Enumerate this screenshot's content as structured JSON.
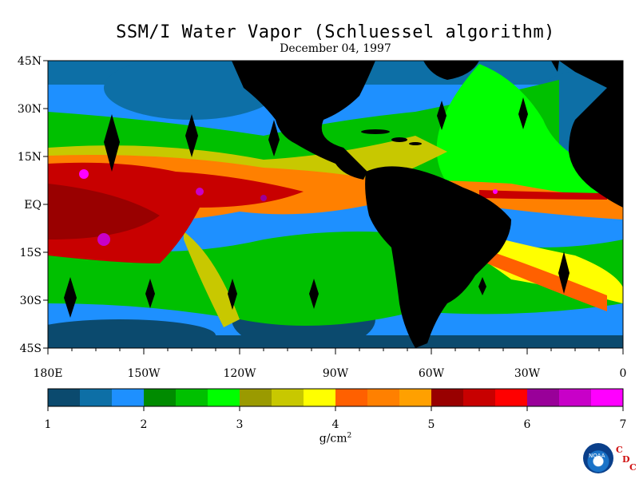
{
  "title": "SSM/I Water Vapor (Schluessel algorithm)",
  "subtitle": "December 04, 1997",
  "axes": {
    "x_ticks": [
      "180E",
      "150W",
      "120W",
      "90W",
      "60W",
      "30W",
      "0"
    ],
    "y_ticks": [
      "45N",
      "30N",
      "15N",
      "EQ",
      "15S",
      "30S",
      "45S"
    ]
  },
  "colorbar": {
    "labels": [
      "1",
      "2",
      "3",
      "4",
      "5",
      "6",
      "7"
    ],
    "units_main": "g/cm",
    "units_sup": "2",
    "colors": [
      "#0b4a6e",
      "#0d6fa6",
      "#1e90ff",
      "#008b00",
      "#00c000",
      "#00ff00",
      "#9a9a00",
      "#c8c800",
      "#ffff00",
      "#ff6000",
      "#ff8000",
      "#ffa000",
      "#990000",
      "#c80000",
      "#ff0000",
      "#990099",
      "#c800c8",
      "#ff00ff"
    ]
  },
  "logo": {
    "noaa_text": "NOAA",
    "cdc_letters": [
      "C",
      "D",
      "C"
    ]
  }
}
